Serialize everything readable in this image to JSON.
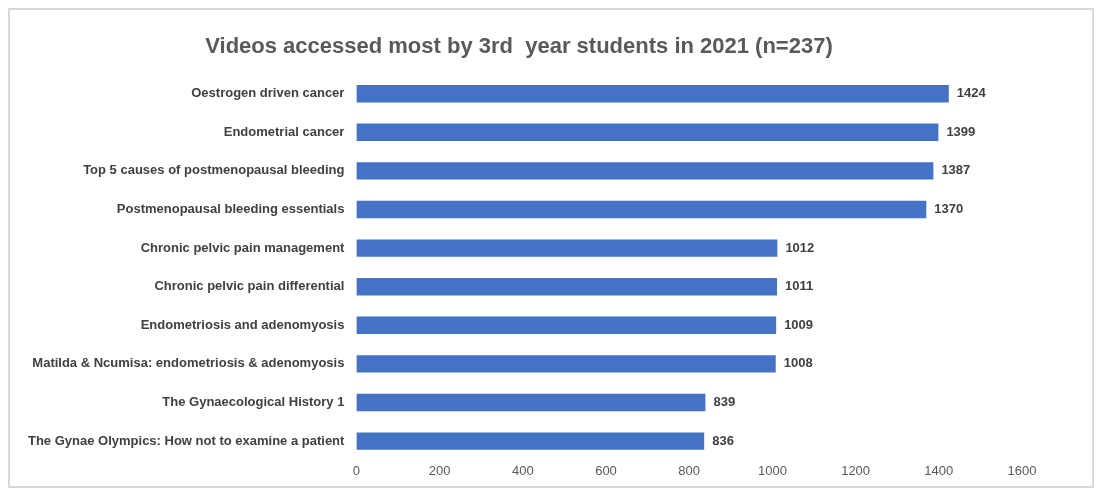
{
  "chart_data": {
    "type": "bar",
    "orientation": "horizontal",
    "title": "Videos accessed most by 3rd  year students in 2021 (n=237)",
    "categories": [
      "Oestrogen driven cancer",
      "Endometrial cancer",
      "Top 5 causes of postmenopausal bleeding",
      "Postmenopausal bleeding essentials",
      "Chronic pelvic pain management",
      "Chronic pelvic pain differential",
      "Endometriosis and adenomyosis",
      "Matilda & Ncumisa: endometriosis & adenomyosis",
      "The Gynaecological History 1",
      "The Gynae Olympics: How not to examine a patient"
    ],
    "values": [
      1424,
      1399,
      1387,
      1370,
      1012,
      1011,
      1009,
      1008,
      839,
      836
    ],
    "color": "#4472c4",
    "xlim": [
      0,
      1600
    ],
    "xticks": [
      0,
      200,
      400,
      600,
      800,
      1000,
      1200,
      1400,
      1600
    ],
    "grid": false,
    "data_labels": true
  }
}
